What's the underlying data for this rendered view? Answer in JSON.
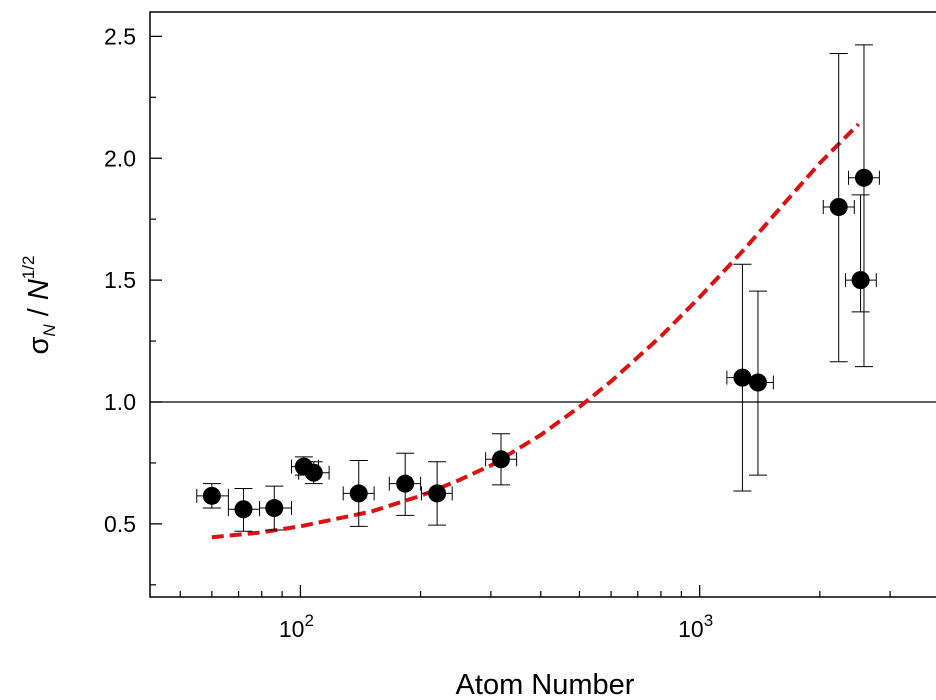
{
  "chart_data": {
    "type": "scatter",
    "title": "",
    "xlabel": "Atom Number",
    "ylabel": {
      "sigma": "σ",
      "sigma_sub": "N",
      "slash": " / ",
      "n": "N",
      "n_sup": "1/2"
    },
    "xscale": "log",
    "xlim": [
      42,
      4000
    ],
    "ylim": [
      0.2,
      2.6
    ],
    "x_ticks": [
      {
        "value": 100,
        "base": "10",
        "exp": "2"
      },
      {
        "value": 1000,
        "base": "10",
        "exp": "3"
      }
    ],
    "x_minor_ticks": [
      50,
      60,
      70,
      80,
      90,
      200,
      300,
      400,
      500,
      600,
      700,
      800,
      900,
      2000,
      3000,
      4000
    ],
    "y_ticks": [
      {
        "value": 0.5,
        "label": "0.5"
      },
      {
        "value": 1.0,
        "label": "1.0"
      },
      {
        "value": 1.5,
        "label": "1.5"
      },
      {
        "value": 2.0,
        "label": "2.0"
      },
      {
        "value": 2.5,
        "label": "2.5"
      }
    ],
    "y_minor_ticks": [
      0.25,
      0.75,
      1.25,
      1.75,
      2.25
    ],
    "reference_line": {
      "y": 1.0
    },
    "grid": false,
    "legend": "none",
    "series": [
      {
        "kind": "points",
        "color": "#000000",
        "points": [
          {
            "x": 60,
            "y": 0.615,
            "y_err_low": 0.565,
            "y_err_high": 0.665,
            "x_err_low": 55,
            "x_err_high": 66
          },
          {
            "x": 72,
            "y": 0.56,
            "y_err_low": 0.47,
            "y_err_high": 0.645,
            "x_err_low": 66,
            "x_err_high": 79
          },
          {
            "x": 86,
            "y": 0.565,
            "y_err_low": 0.475,
            "y_err_high": 0.655,
            "x_err_low": 79,
            "x_err_high": 95
          },
          {
            "x": 102,
            "y": 0.735,
            "y_err_low": 0.7,
            "y_err_high": 0.775,
            "x_err_low": 95,
            "x_err_high": 111
          },
          {
            "x": 108,
            "y": 0.71,
            "y_err_low": 0.665,
            "y_err_high": 0.755,
            "x_err_low": 99,
            "x_err_high": 118
          },
          {
            "x": 140,
            "y": 0.625,
            "y_err_low": 0.49,
            "y_err_high": 0.76,
            "x_err_low": 128,
            "x_err_high": 153
          },
          {
            "x": 183,
            "y": 0.665,
            "y_err_low": 0.535,
            "y_err_high": 0.79,
            "x_err_low": 167,
            "x_err_high": 200
          },
          {
            "x": 220,
            "y": 0.625,
            "y_err_low": 0.495,
            "y_err_high": 0.755,
            "x_err_low": 201,
            "x_err_high": 240
          },
          {
            "x": 318,
            "y": 0.765,
            "y_err_low": 0.66,
            "y_err_high": 0.87,
            "x_err_low": 291,
            "x_err_high": 348
          },
          {
            "x": 1280,
            "y": 1.1,
            "y_err_low": 0.635,
            "y_err_high": 1.565,
            "x_err_low": 1170,
            "x_err_high": 1400
          },
          {
            "x": 1400,
            "y": 1.08,
            "y_err_low": 0.7,
            "y_err_high": 1.455,
            "x_err_low": 1280,
            "x_err_high": 1530
          },
          {
            "x": 2230,
            "y": 1.8,
            "y_err_low": 1.165,
            "y_err_high": 2.43,
            "x_err_low": 2040,
            "x_err_high": 2440
          },
          {
            "x": 2530,
            "y": 1.5,
            "y_err_low": 1.37,
            "y_err_high": 1.85,
            "x_err_low": 2320,
            "x_err_high": 2770
          },
          {
            "x": 2580,
            "y": 1.92,
            "y_err_low": 1.145,
            "y_err_high": 2.465,
            "x_err_low": 2360,
            "x_err_high": 2820
          }
        ]
      },
      {
        "kind": "fit-curve",
        "style": "dashed",
        "color": "#dd1111",
        "x": [
          60,
          80,
          100,
          150,
          200,
          250,
          300,
          400,
          500,
          600,
          800,
          1000,
          1300,
          1600,
          2000,
          2500
        ],
        "y": [
          0.445,
          0.465,
          0.49,
          0.55,
          0.615,
          0.68,
          0.74,
          0.865,
          0.98,
          1.085,
          1.27,
          1.43,
          1.63,
          1.8,
          1.98,
          2.14
        ]
      }
    ]
  }
}
